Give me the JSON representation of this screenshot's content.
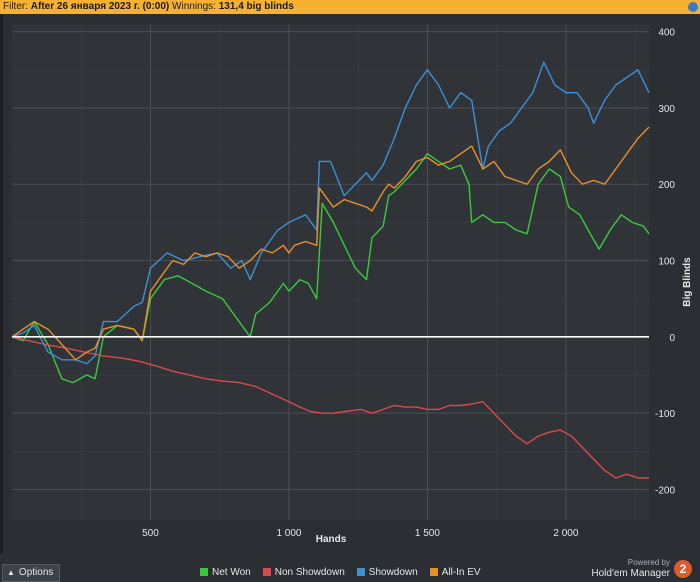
{
  "filter": {
    "label": "Filter:",
    "value": "After 26 января 2023 г. (0:00)",
    "winnings_label": "Winnings:",
    "winnings_value": "131,4 big blinds"
  },
  "footer": {
    "options_label": "Options",
    "powered_by": "Powered by",
    "brand_name": "Hold'em Manager",
    "brand_logo": "2"
  },
  "chart_data": {
    "type": "line",
    "xlabel": "Hands",
    "ylabel": "Big Blinds",
    "xlim": [
      0,
      2300
    ],
    "ylim": [
      -240,
      410
    ],
    "x_ticks": [
      {
        "value": 500,
        "label": "500"
      },
      {
        "value": 1000,
        "label": "1 000"
      },
      {
        "value": 1500,
        "label": "1 500"
      },
      {
        "value": 2000,
        "label": "2 000"
      }
    ],
    "y_ticks": [
      {
        "value": 400,
        "label": "400"
      },
      {
        "value": 300,
        "label": "300"
      },
      {
        "value": 200,
        "label": "200"
      },
      {
        "value": 100,
        "label": "100"
      },
      {
        "value": 0,
        "label": "0"
      },
      {
        "value": -100,
        "label": "-100"
      },
      {
        "value": -200,
        "label": "-200"
      }
    ],
    "grid": true,
    "legend_position": "bottom",
    "series": [
      {
        "name": "Net Won",
        "color": "#3ac93a",
        "points": [
          [
            0,
            0
          ],
          [
            40,
            -5
          ],
          [
            80,
            20
          ],
          [
            130,
            -10
          ],
          [
            180,
            -55
          ],
          [
            220,
            -60
          ],
          [
            270,
            -50
          ],
          [
            300,
            -55
          ],
          [
            330,
            0
          ],
          [
            380,
            15
          ],
          [
            440,
            10
          ],
          [
            470,
            -5
          ],
          [
            500,
            50
          ],
          [
            550,
            75
          ],
          [
            600,
            80
          ],
          [
            650,
            70
          ],
          [
            700,
            60
          ],
          [
            760,
            50
          ],
          [
            800,
            30
          ],
          [
            840,
            10
          ],
          [
            860,
            0
          ],
          [
            880,
            30
          ],
          [
            930,
            45
          ],
          [
            980,
            70
          ],
          [
            1000,
            60
          ],
          [
            1040,
            75
          ],
          [
            1070,
            70
          ],
          [
            1100,
            50
          ],
          [
            1120,
            175
          ],
          [
            1160,
            150
          ],
          [
            1200,
            120
          ],
          [
            1240,
            90
          ],
          [
            1280,
            75
          ],
          [
            1300,
            130
          ],
          [
            1340,
            145
          ],
          [
            1360,
            185
          ],
          [
            1380,
            190
          ],
          [
            1420,
            205
          ],
          [
            1460,
            220
          ],
          [
            1500,
            240
          ],
          [
            1540,
            230
          ],
          [
            1580,
            220
          ],
          [
            1620,
            225
          ],
          [
            1650,
            200
          ],
          [
            1660,
            150
          ],
          [
            1700,
            160
          ],
          [
            1740,
            150
          ],
          [
            1780,
            150
          ],
          [
            1820,
            140
          ],
          [
            1860,
            135
          ],
          [
            1900,
            200
          ],
          [
            1940,
            220
          ],
          [
            1980,
            210
          ],
          [
            2010,
            170
          ],
          [
            2050,
            160
          ],
          [
            2080,
            140
          ],
          [
            2120,
            115
          ],
          [
            2160,
            140
          ],
          [
            2200,
            160
          ],
          [
            2240,
            150
          ],
          [
            2280,
            145
          ],
          [
            2300,
            135
          ]
        ]
      },
      {
        "name": "Non Showdown",
        "color": "#d94a4a",
        "points": [
          [
            0,
            0
          ],
          [
            60,
            -5
          ],
          [
            120,
            -10
          ],
          [
            200,
            -15
          ],
          [
            260,
            -20
          ],
          [
            330,
            -25
          ],
          [
            400,
            -28
          ],
          [
            460,
            -32
          ],
          [
            520,
            -38
          ],
          [
            580,
            -45
          ],
          [
            640,
            -50
          ],
          [
            700,
            -55
          ],
          [
            760,
            -58
          ],
          [
            820,
            -60
          ],
          [
            880,
            -65
          ],
          [
            940,
            -75
          ],
          [
            1000,
            -85
          ],
          [
            1040,
            -92
          ],
          [
            1080,
            -98
          ],
          [
            1120,
            -100
          ],
          [
            1160,
            -100
          ],
          [
            1200,
            -98
          ],
          [
            1260,
            -95
          ],
          [
            1300,
            -100
          ],
          [
            1340,
            -95
          ],
          [
            1380,
            -90
          ],
          [
            1420,
            -92
          ],
          [
            1460,
            -92
          ],
          [
            1500,
            -95
          ],
          [
            1540,
            -95
          ],
          [
            1580,
            -90
          ],
          [
            1620,
            -90
          ],
          [
            1660,
            -88
          ],
          [
            1700,
            -85
          ],
          [
            1740,
            -100
          ],
          [
            1780,
            -115
          ],
          [
            1820,
            -130
          ],
          [
            1860,
            -140
          ],
          [
            1900,
            -130
          ],
          [
            1940,
            -125
          ],
          [
            1980,
            -122
          ],
          [
            2020,
            -130
          ],
          [
            2060,
            -145
          ],
          [
            2100,
            -160
          ],
          [
            2140,
            -175
          ],
          [
            2180,
            -185
          ],
          [
            2220,
            -180
          ],
          [
            2260,
            -185
          ],
          [
            2300,
            -185
          ]
        ]
      },
      {
        "name": "Showdown",
        "color": "#3f8fd4",
        "points": [
          [
            0,
            0
          ],
          [
            40,
            5
          ],
          [
            80,
            15
          ],
          [
            130,
            -20
          ],
          [
            180,
            -30
          ],
          [
            230,
            -30
          ],
          [
            270,
            -35
          ],
          [
            300,
            -25
          ],
          [
            330,
            20
          ],
          [
            380,
            20
          ],
          [
            440,
            40
          ],
          [
            470,
            45
          ],
          [
            500,
            90
          ],
          [
            560,
            110
          ],
          [
            620,
            100
          ],
          [
            680,
            105
          ],
          [
            740,
            110
          ],
          [
            790,
            90
          ],
          [
            830,
            100
          ],
          [
            860,
            75
          ],
          [
            900,
            110
          ],
          [
            960,
            140
          ],
          [
            1000,
            150
          ],
          [
            1060,
            160
          ],
          [
            1100,
            140
          ],
          [
            1110,
            230
          ],
          [
            1150,
            230
          ],
          [
            1200,
            185
          ],
          [
            1240,
            200
          ],
          [
            1280,
            215
          ],
          [
            1300,
            205
          ],
          [
            1340,
            225
          ],
          [
            1380,
            260
          ],
          [
            1420,
            300
          ],
          [
            1460,
            330
          ],
          [
            1500,
            350
          ],
          [
            1540,
            330
          ],
          [
            1580,
            300
          ],
          [
            1620,
            320
          ],
          [
            1660,
            310
          ],
          [
            1700,
            220
          ],
          [
            1720,
            250
          ],
          [
            1760,
            270
          ],
          [
            1800,
            280
          ],
          [
            1840,
            300
          ],
          [
            1880,
            320
          ],
          [
            1920,
            360
          ],
          [
            1960,
            330
          ],
          [
            2000,
            320
          ],
          [
            2040,
            320
          ],
          [
            2080,
            300
          ],
          [
            2100,
            280
          ],
          [
            2140,
            310
          ],
          [
            2180,
            330
          ],
          [
            2220,
            340
          ],
          [
            2260,
            350
          ],
          [
            2300,
            320
          ]
        ]
      },
      {
        "name": "All-In EV",
        "color": "#e88f2a",
        "points": [
          [
            0,
            0
          ],
          [
            40,
            10
          ],
          [
            80,
            20
          ],
          [
            130,
            10
          ],
          [
            180,
            -10
          ],
          [
            230,
            -30
          ],
          [
            270,
            -20
          ],
          [
            300,
            -15
          ],
          [
            330,
            10
          ],
          [
            380,
            15
          ],
          [
            440,
            10
          ],
          [
            470,
            -5
          ],
          [
            500,
            60
          ],
          [
            540,
            80
          ],
          [
            580,
            100
          ],
          [
            620,
            95
          ],
          [
            660,
            110
          ],
          [
            700,
            105
          ],
          [
            740,
            110
          ],
          [
            780,
            105
          ],
          [
            820,
            90
          ],
          [
            860,
            100
          ],
          [
            900,
            115
          ],
          [
            940,
            110
          ],
          [
            980,
            120
          ],
          [
            1000,
            110
          ],
          [
            1020,
            120
          ],
          [
            1060,
            125
          ],
          [
            1100,
            120
          ],
          [
            1110,
            195
          ],
          [
            1160,
            170
          ],
          [
            1200,
            180
          ],
          [
            1240,
            175
          ],
          [
            1280,
            170
          ],
          [
            1300,
            165
          ],
          [
            1340,
            190
          ],
          [
            1360,
            200
          ],
          [
            1380,
            195
          ],
          [
            1420,
            210
          ],
          [
            1460,
            230
          ],
          [
            1500,
            235
          ],
          [
            1540,
            225
          ],
          [
            1580,
            230
          ],
          [
            1620,
            240
          ],
          [
            1660,
            250
          ],
          [
            1700,
            220
          ],
          [
            1740,
            230
          ],
          [
            1780,
            210
          ],
          [
            1820,
            205
          ],
          [
            1860,
            200
          ],
          [
            1900,
            220
          ],
          [
            1940,
            230
          ],
          [
            1980,
            245
          ],
          [
            2020,
            215
          ],
          [
            2060,
            200
          ],
          [
            2100,
            205
          ],
          [
            2140,
            200
          ],
          [
            2180,
            220
          ],
          [
            2220,
            240
          ],
          [
            2260,
            260
          ],
          [
            2300,
            275
          ]
        ]
      }
    ]
  }
}
